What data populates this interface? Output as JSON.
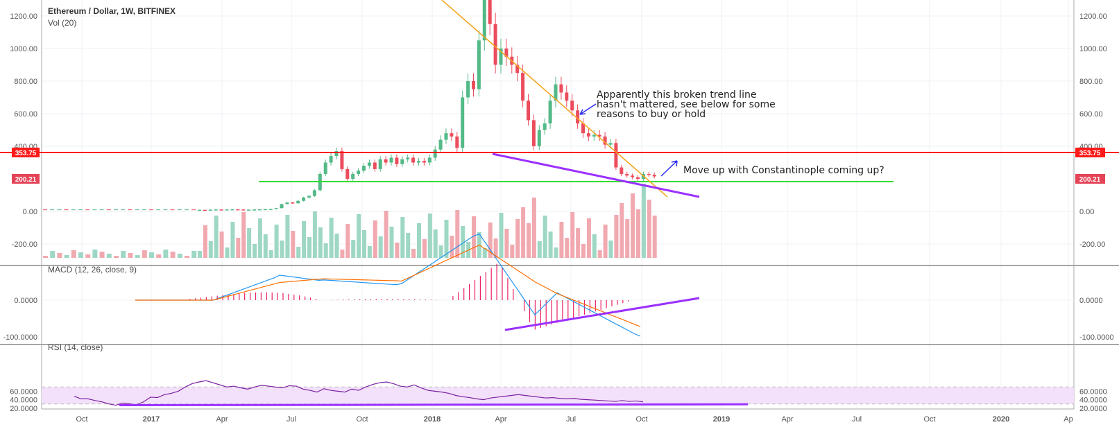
{
  "header": {
    "title": "Ethereum / Dollar, 1W, BITFINEX",
    "volume_label": "Vol (20)",
    "macd_label": "MACD (12, 26, close, 9)",
    "rsi_label": "RSI (14, close)"
  },
  "price_axis": {
    "ticks": [
      "1200.00",
      "1000.00",
      "800.00",
      "600.00",
      "400.00",
      "0.00",
      "-200.00"
    ],
    "tick_values": [
      1200,
      1000,
      800,
      600,
      400,
      0,
      -200
    ]
  },
  "macd_axis": {
    "ticks": [
      "0.0000",
      "-100.0000"
    ],
    "tick_values": [
      0,
      -100
    ]
  },
  "rsi_axis": {
    "ticks": [
      "60.0000",
      "40.0000",
      "20.0000"
    ],
    "tick_values": [
      60,
      40,
      20
    ]
  },
  "x_axis": {
    "ticks": [
      "Oct",
      "2017",
      "Jul",
      "Apr",
      "Jul",
      "Oct",
      "2018",
      "Apr",
      "Jul",
      "Oct",
      "2019",
      "Apr",
      "Jul",
      "Oct",
      "2020",
      "Ap"
    ],
    "tick_labels_display": [
      "Oct",
      "2017",
      "Apr",
      "Jul",
      "Oct",
      "2018",
      "Apr",
      "Jul",
      "Oct",
      "2019",
      "Apr",
      "Jul",
      "Oct",
      "2020",
      "Ap"
    ]
  },
  "levels": {
    "resistance_value": "353.75",
    "support_value": "200.21",
    "resistance_color": "#ff1a1a",
    "support_color": "#33dd33"
  },
  "annotations": {
    "trend_note_lines": [
      "Apparently this broken trend line",
      "hasn't mattered, see below for some",
      "reasons to buy or hold"
    ],
    "move_note": "Move up with Constantinople coming up?"
  },
  "colors": {
    "up": "#53b987",
    "down": "#eb4d5c",
    "trend_line": "#f5a623",
    "purple_line": "#9b30ff",
    "macd_line": "#2196f3",
    "signal_line": "#ff6d00",
    "histogram": "#e91e63",
    "rsi_line": "#7b1fa2",
    "rsi_band": "#f3e0fb"
  },
  "chart_data": {
    "type": "candlestick",
    "title": "Ethereum / Dollar, 1W, BITFINEX",
    "period": "1W",
    "candles_close": [
      10,
      10,
      11,
      12,
      11,
      12,
      13,
      12,
      11,
      11,
      12,
      13,
      14,
      15,
      20,
      45,
      55,
      50,
      65,
      85,
      95,
      130,
      230,
      300,
      340,
      370,
      260,
      200,
      230,
      250,
      280,
      300,
      260,
      320,
      300,
      330,
      290,
      320,
      330,
      300,
      310,
      300,
      330,
      380,
      440,
      480,
      460,
      390,
      700,
      800,
      750,
      1050,
      1300,
      1150,
      900,
      1000,
      950,
      900,
      850,
      680,
      560,
      400,
      500,
      540,
      680,
      780,
      730,
      680,
      620,
      540,
      480,
      460,
      470,
      460,
      410,
      420,
      270,
      230,
      220,
      210,
      200,
      230,
      225,
      215
    ],
    "candles_direction": [
      "up",
      "down",
      "up",
      "up",
      "down",
      "up",
      "up",
      "down",
      "down",
      "up",
      "up",
      "up",
      "up",
      "up",
      "up",
      "up",
      "up",
      "down",
      "up",
      "up",
      "up",
      "up",
      "up",
      "up",
      "up",
      "up",
      "down",
      "down",
      "up",
      "up",
      "up",
      "up",
      "down",
      "up",
      "down",
      "up",
      "down",
      "up",
      "up",
      "down",
      "up",
      "down",
      "up",
      "up",
      "up",
      "up",
      "down",
      "down",
      "up",
      "up",
      "down",
      "up",
      "up",
      "down",
      "down",
      "up",
      "down",
      "down",
      "down",
      "down",
      "down",
      "down",
      "up",
      "up",
      "up",
      "up",
      "down",
      "down",
      "down",
      "down",
      "down",
      "down",
      "up",
      "down",
      "down",
      "up",
      "down",
      "down",
      "down",
      "down",
      "down",
      "up",
      "down",
      "down"
    ],
    "macd": {
      "series": [
        {
          "name": "MACD"
        },
        {
          "name": "Signal"
        },
        {
          "name": "Histogram"
        }
      ]
    },
    "rsi": {
      "level_upper": 70,
      "level_lower": 30
    },
    "horizontal_levels": [
      353.75,
      200.21,
      180
    ]
  }
}
